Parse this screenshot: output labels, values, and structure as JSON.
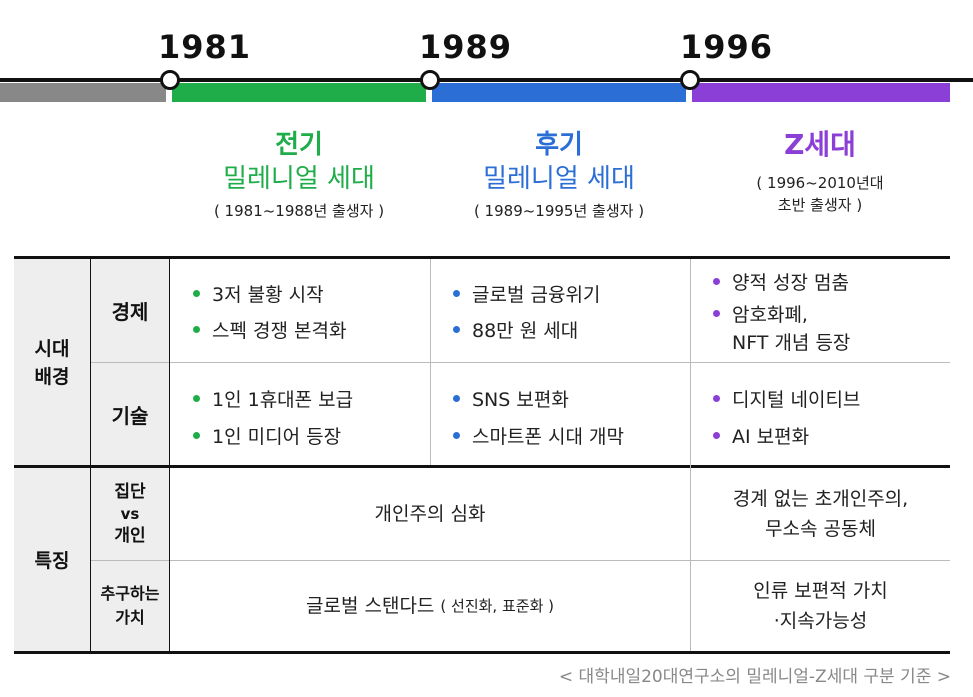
{
  "timeline": {
    "years": [
      "1981",
      "1989",
      "1996"
    ],
    "colors": {
      "pre": "#888888",
      "early": "#1fad4a",
      "late": "#2b6fd6",
      "z": "#8b3fd6"
    }
  },
  "generations": [
    {
      "line1": "전기",
      "line2": "밀레니얼 세대",
      "range": "( 1981~1988년 출생자 )"
    },
    {
      "line1": "후기",
      "line2": "밀레니얼 세대",
      "range": "( 1989~1995년 출생자 )"
    },
    {
      "line1": "Z세대",
      "range_a": "( 1996~2010년대",
      "range_b": "초반 출생자 )"
    }
  ],
  "row_groups": {
    "background": {
      "line1": "시대",
      "line2": "배경"
    },
    "features": "특징"
  },
  "sub_rows": {
    "economy": "경제",
    "tech": "기술",
    "collective_a": "집단",
    "collective_b": "vs",
    "collective_c": "개인",
    "values_a": "추구하는",
    "values_b": "가치"
  },
  "economy": {
    "early": [
      "3저 불황 시작",
      "스펙 경쟁 본격화"
    ],
    "late": [
      "글로벌 금융위기",
      "88만 원 세대"
    ],
    "z": [
      "양적 성장 멈춤",
      "암호화폐,",
      "NFT 개념 등장"
    ]
  },
  "tech": {
    "early": [
      "1인 1휴대폰 보급",
      "1인 미디어 등장"
    ],
    "late": [
      "SNS 보편화",
      "스마트폰 시대 개막"
    ],
    "z": [
      "디지털 네이티브",
      "AI 보편화"
    ]
  },
  "collective": {
    "millennial": "개인주의 심화",
    "z_a": "경계 없는 초개인주의,",
    "z_b": "무소속 공동체"
  },
  "values": {
    "millennial": "글로벌 스탠다드",
    "millennial_note": "( 선진화, 표준화 )",
    "z_a": "인류 보편적 가치",
    "z_b": "·지속가능성"
  },
  "source": "< 대학내일20대연구소의 밀레니얼-Z세대 구분 기준 >"
}
